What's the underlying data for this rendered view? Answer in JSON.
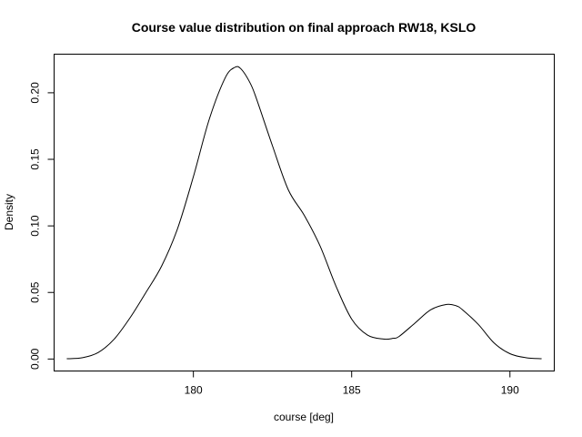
{
  "chart_data": {
    "type": "line",
    "title": "Course value distribution on final approach RW18, KSLO",
    "xlabel": "course [deg]",
    "ylabel": "Density",
    "xlim": [
      175.6,
      191.4
    ],
    "ylim": [
      -0.009,
      0.229
    ],
    "x_ticks": [
      180,
      185,
      190
    ],
    "x_tick_labels": [
      "180",
      "185",
      "190"
    ],
    "y_ticks": [
      0.0,
      0.05,
      0.1,
      0.15,
      0.2
    ],
    "y_tick_labels": [
      "0.00",
      "0.05",
      "0.10",
      "0.15",
      "0.20"
    ],
    "grid": false,
    "legend": "none",
    "series": [
      {
        "x": [
          176.0,
          176.5,
          177.0,
          177.5,
          178.0,
          178.5,
          179.0,
          179.5,
          180.0,
          180.5,
          181.0,
          181.3,
          181.5,
          181.8,
          182.0,
          182.5,
          183.0,
          183.5,
          184.0,
          184.5,
          185.0,
          185.5,
          186.0,
          186.3,
          186.5,
          187.0,
          187.5,
          188.0,
          188.3,
          188.5,
          189.0,
          189.5,
          190.0,
          190.5,
          191.0
        ],
        "y": [
          0.0002,
          0.001,
          0.005,
          0.015,
          0.031,
          0.05,
          0.07,
          0.098,
          0.137,
          0.18,
          0.211,
          0.219,
          0.218,
          0.207,
          0.195,
          0.16,
          0.127,
          0.108,
          0.085,
          0.055,
          0.03,
          0.018,
          0.015,
          0.0155,
          0.017,
          0.027,
          0.037,
          0.041,
          0.04,
          0.037,
          0.026,
          0.012,
          0.004,
          0.001,
          0.0002
        ]
      }
    ]
  }
}
